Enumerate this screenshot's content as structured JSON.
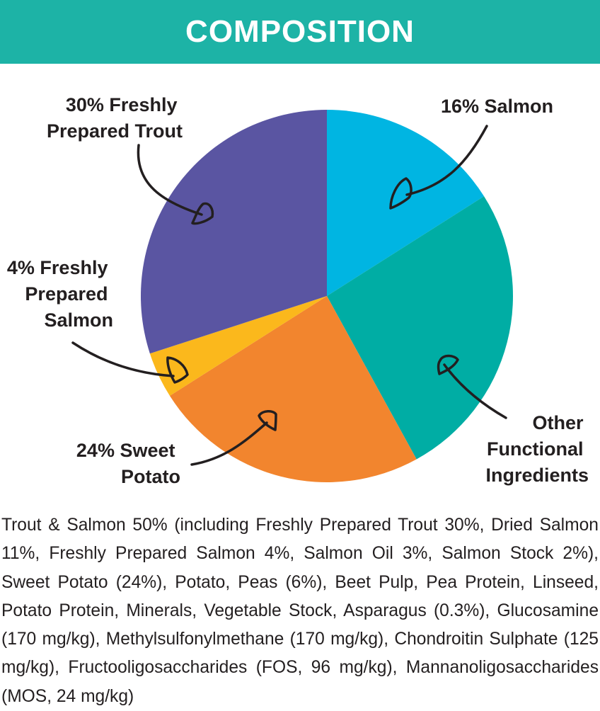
{
  "header": {
    "title": "COMPOSITION"
  },
  "colors": {
    "header_bg": "#1db3a6",
    "salmon": "#00b5e2",
    "other": "#00ada4",
    "sweet_potato": "#f2852e",
    "fresh_salmon": "#fbb81c",
    "trout": "#5a55a2",
    "text": "#231f20"
  },
  "chart_data": {
    "type": "pie",
    "title": "COMPOSITION",
    "start_angle_deg": 0,
    "direction": "clockwise",
    "slices": [
      {
        "key": "salmon",
        "percent": 16,
        "color": "#00b5e2",
        "label_lines": [
          "16% Salmon"
        ]
      },
      {
        "key": "other",
        "percent": 26,
        "color": "#00ada4",
        "label_lines": [
          "Other",
          "Functional",
          "Ingredients"
        ]
      },
      {
        "key": "sweet_potato",
        "percent": 24,
        "color": "#f2852e",
        "label_lines": [
          "24% Sweet",
          "Potato"
        ]
      },
      {
        "key": "fresh_salmon",
        "percent": 4,
        "color": "#fbb81c",
        "label_lines": [
          "4% Freshly",
          "Prepared",
          "Salmon"
        ]
      },
      {
        "key": "trout",
        "percent": 30,
        "color": "#5a55a2",
        "label_lines": [
          "30% Freshly",
          "Prepared Trout"
        ]
      }
    ]
  },
  "description": "Trout & Salmon 50% (including Freshly Prepared Trout 30%, Dried Salmon 11%, Freshly Prepared Salmon 4%, Salmon Oil 3%, Salmon Stock 2%), Sweet Potato (24%), Potato, Peas (6%), Beet Pulp, Pea Protein, Linseed, Potato Protein, Minerals, Vegetable Stock, Asparagus (0.3%), Glucosamine (170 mg/kg), Methylsulfonylmethane (170 mg/kg), Chondroitin Sulphate (125 mg/kg), Fructooligosaccharides (FOS, 96 mg/kg), Mannanoligosaccharides (MOS, 24 mg/kg)"
}
